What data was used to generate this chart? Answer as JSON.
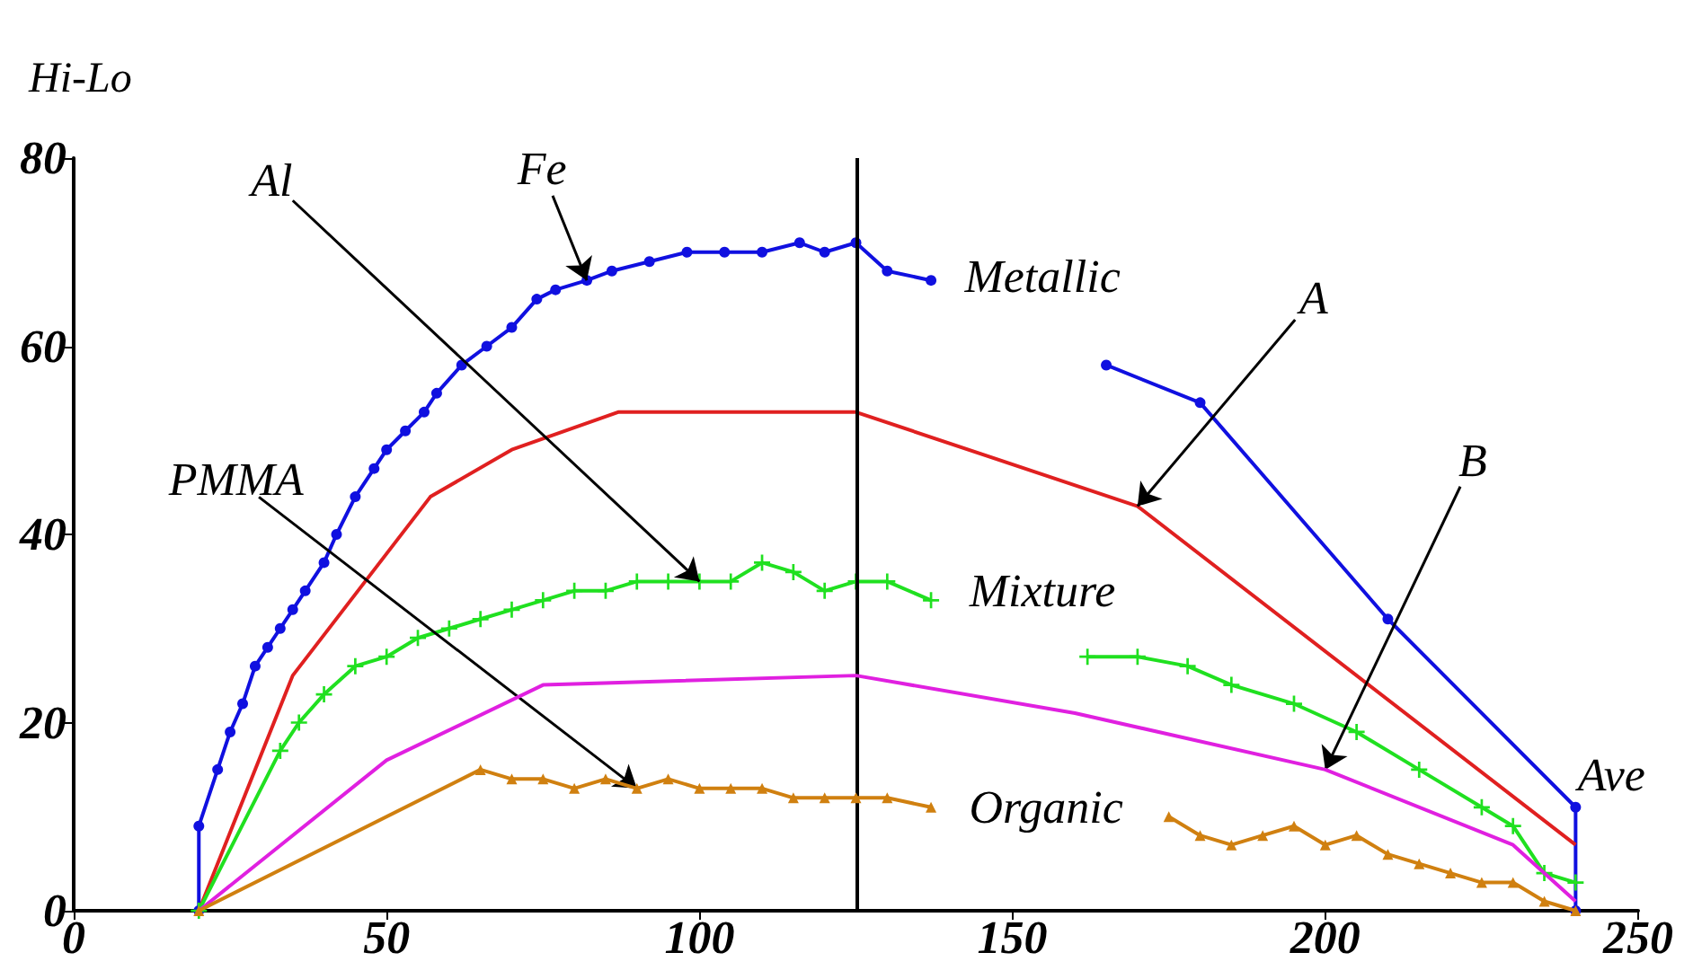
{
  "chart_data": {
    "type": "line",
    "ylabel": "Hi-Lo",
    "xlim": [
      0,
      250
    ],
    "ylim": [
      0,
      80
    ],
    "xticks": [
      0,
      50,
      100,
      150,
      200,
      250
    ],
    "yticks": [
      0,
      20,
      40,
      60,
      80
    ],
    "grid": false,
    "series": [
      {
        "color": "#1010e0",
        "marker": "circle",
        "x": [
          20,
          20,
          23,
          25,
          27,
          29,
          31,
          33,
          35,
          37,
          40,
          42,
          45,
          48,
          50,
          53,
          56,
          58,
          62,
          66,
          70,
          74,
          77,
          82,
          86,
          92,
          98,
          104,
          110,
          116,
          120,
          125,
          130,
          137,
          150,
          165,
          180,
          210,
          240,
          240
        ],
        "values": [
          0,
          9,
          15,
          19,
          22,
          26,
          28,
          30,
          32,
          34,
          37,
          40,
          44,
          47,
          49,
          51,
          53,
          55,
          58,
          60,
          62,
          65,
          66,
          67,
          68,
          69,
          70,
          70,
          70,
          71,
          70,
          71,
          68,
          67,
          null,
          58,
          54,
          31,
          11,
          0
        ]
      },
      {
        "color": "#e02020",
        "marker": "none",
        "x": [
          20,
          35,
          57,
          70,
          87,
          125,
          170,
          240
        ],
        "values": [
          0,
          25,
          44,
          49,
          53,
          53,
          43,
          7
        ]
      },
      {
        "color": "#20e020",
        "marker": "cross",
        "x": [
          20,
          33,
          36,
          40,
          45,
          50,
          55,
          60,
          65,
          70,
          75,
          80,
          85,
          90,
          95,
          100,
          105,
          110,
          115,
          120,
          125,
          130,
          137,
          150,
          162,
          170,
          178,
          185,
          195,
          205,
          215,
          225,
          230,
          235,
          240
        ],
        "values": [
          0,
          17,
          20,
          23,
          26,
          27,
          29,
          30,
          31,
          32,
          33,
          34,
          34,
          35,
          35,
          35,
          35,
          37,
          36,
          34,
          35,
          35,
          33,
          null,
          27,
          27,
          26,
          24,
          22,
          19,
          15,
          11,
          9,
          4,
          3
        ]
      },
      {
        "color": "#e020e0",
        "marker": "none",
        "x": [
          20,
          50,
          75,
          125,
          160,
          200,
          230,
          240
        ],
        "values": [
          0,
          16,
          24,
          25,
          21,
          15,
          7,
          1
        ]
      },
      {
        "color": "#d08010",
        "marker": "triangle",
        "x": [
          20,
          65,
          70,
          75,
          80,
          85,
          90,
          95,
          100,
          105,
          110,
          115,
          120,
          125,
          130,
          137,
          150,
          175,
          180,
          185,
          190,
          195,
          200,
          205,
          210,
          215,
          220,
          225,
          230,
          235,
          240
        ],
        "values": [
          0,
          15,
          14,
          14,
          13,
          14,
          13,
          14,
          13,
          13,
          13,
          12,
          12,
          12,
          12,
          11,
          null,
          10,
          8,
          7,
          8,
          9,
          7,
          8,
          6,
          5,
          4,
          3,
          3,
          1,
          0
        ]
      }
    ],
    "ref_lines": [
      {
        "axis": "x",
        "value": 125,
        "color": "#000000"
      }
    ],
    "annotations": [
      {
        "text": "Fe",
        "x": 82,
        "y": 67
      },
      {
        "text": "Al",
        "x": 100,
        "y": 35
      },
      {
        "text": "PMMA",
        "x": 90,
        "y": 13
      },
      {
        "text": "A",
        "x": 170,
        "y": 43
      },
      {
        "text": "B",
        "x": 200,
        "y": 15
      },
      {
        "text": "Metallic",
        "x": 137,
        "y": 67
      },
      {
        "text": "Mixture",
        "x": 137,
        "y": 33
      },
      {
        "text": "Organic",
        "x": 137,
        "y": 11
      },
      {
        "text": "Ave",
        "x": 240,
        "y": 11
      }
    ]
  }
}
